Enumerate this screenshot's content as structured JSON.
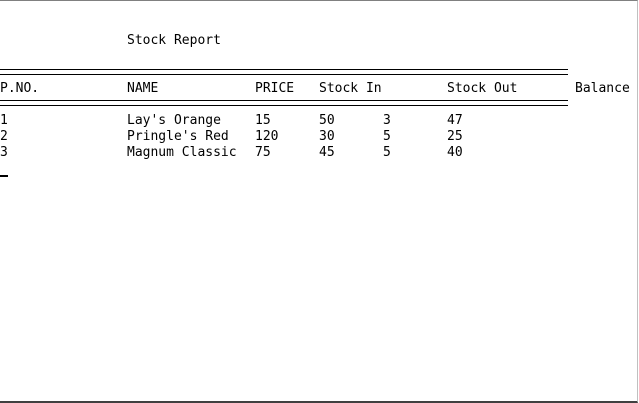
{
  "report": {
    "title": "Stock Report",
    "headers": [
      "P.NO.",
      "NAME",
      "PRICE",
      "Stock In",
      "Stock Out",
      "Balance"
    ],
    "rows": [
      {
        "pno": "1",
        "name": "Lay's Orange",
        "price": "15",
        "stock_in": "50",
        "stock_out": "3",
        "balance": "47"
      },
      {
        "pno": "2",
        "name": "Pringle's Red",
        "price": "120",
        "stock_in": "30",
        "stock_out": "5",
        "balance": "25"
      },
      {
        "pno": "3",
        "name": "Magnum Classic",
        "price": "75",
        "stock_in": "45",
        "stock_out": "5",
        "balance": "40"
      }
    ]
  }
}
